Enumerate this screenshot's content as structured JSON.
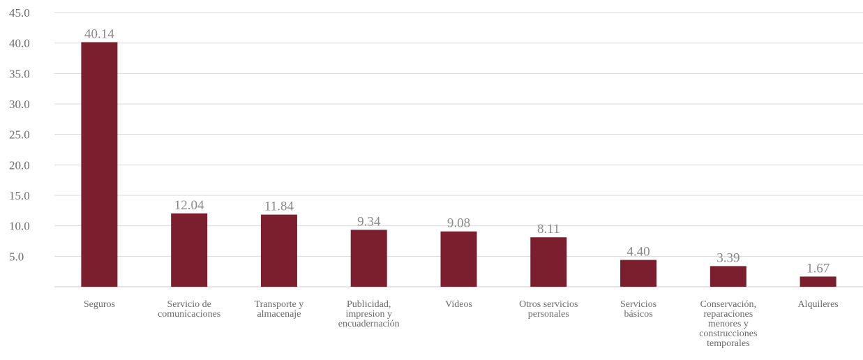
{
  "chart_data": {
    "type": "bar",
    "categories": [
      "Seguros",
      "Servicio de comunicaciones",
      "Transporte y almacenaje",
      "Publicidad, impresion y encuadernación",
      "Videos",
      "Otros servicios personales",
      "Servicios básicos",
      "Conservación, reparaciones menores y construcciones temporales",
      "Alquileres"
    ],
    "category_lines": [
      [
        "Seguros"
      ],
      [
        "Servicio de",
        "comunicaciones"
      ],
      [
        "Transporte y",
        "almacenaje"
      ],
      [
        "Publicidad,",
        "impresion y",
        "encuadernación"
      ],
      [
        "Videos"
      ],
      [
        "Otros servicios",
        "personales"
      ],
      [
        "Servicios",
        "básicos"
      ],
      [
        "Conservación,",
        "reparaciones",
        "menores y",
        "construcciones",
        "temporales"
      ],
      [
        "Alquileres"
      ]
    ],
    "values": [
      40.14,
      12.04,
      11.84,
      9.34,
      9.08,
      8.11,
      4.4,
      3.39,
      1.67
    ],
    "value_labels": [
      "40.14",
      "12.04",
      "11.84",
      "9.34",
      "9.08",
      "8.11",
      "4.40",
      "3.39",
      "1.67"
    ],
    "yticks": [
      "5.0",
      "10.0",
      "15.0",
      "20.0",
      "25.0",
      "30.0",
      "35.0",
      "40.0",
      "45.0"
    ],
    "ylim": [
      0,
      45
    ],
    "bar_color": "#7b1f2e",
    "grid": true,
    "title": "",
    "xlabel": "",
    "ylabel": ""
  }
}
